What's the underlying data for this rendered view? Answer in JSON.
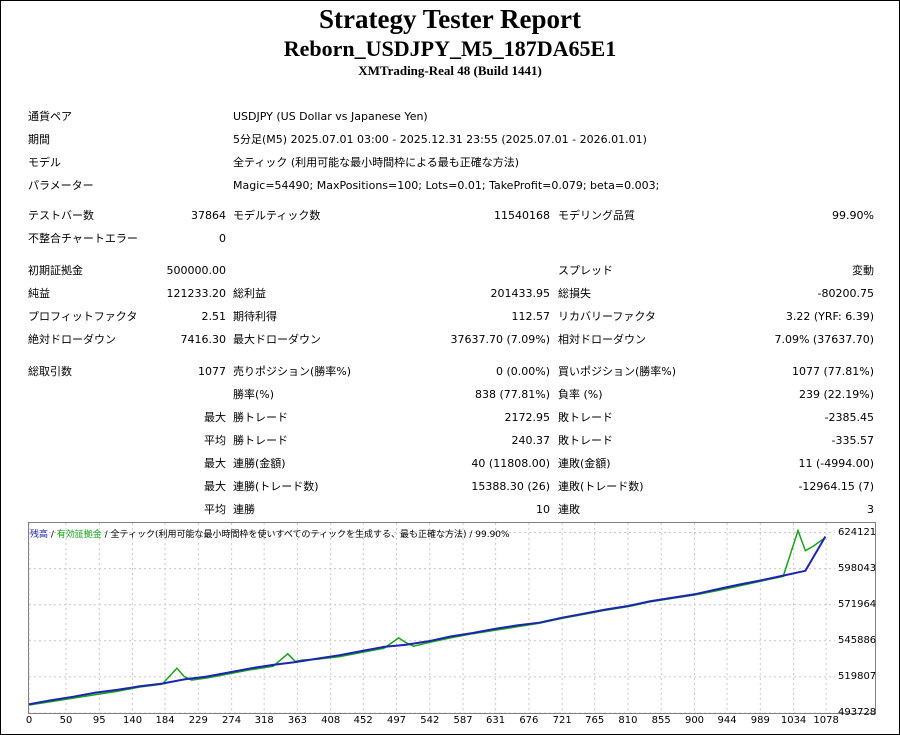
{
  "report": {
    "title": "Strategy Tester Report",
    "ea_name": "Reborn_USDJPY_M5_187DA65E1",
    "server": "XMTrading-Real 48 (Build 1441)"
  },
  "settings": {
    "symbol_label": "通貨ペア",
    "symbol_value": "USDJPY (US Dollar vs Japanese Yen)",
    "period_label": "期間",
    "period_value": "5分足(M5) 2025.07.01 03:00 - 2025.12.31 23:55 (2025.07.01 - 2026.01.01)",
    "model_label": "モデル",
    "model_value": "全ティック (利用可能な最小時間枠による最も正確な方法)",
    "params_label": "パラメーター",
    "params_value": "Magic=54490; MaxPositions=100; Lots=0.01; TakeProfit=0.079; beta=0.003;"
  },
  "stats": {
    "bars_label": "テストバー数",
    "bars_value": "37864",
    "ticks_label": "モデルティック数",
    "ticks_value": "11540168",
    "quality_label": "モデリング品質",
    "quality_value": "99.90%",
    "mismatch_label": "不整合チャートエラー",
    "mismatch_value": "0",
    "deposit_label": "初期証拠金",
    "deposit_value": "500000.00",
    "spread_label": "スプレッド",
    "spread_value": "変動",
    "net_label": "純益",
    "net_value": "121233.20",
    "gross_profit_label": "総利益",
    "gross_profit_value": "201433.95",
    "gross_loss_label": "総損失",
    "gross_loss_value": "-80200.75",
    "pf_label": "プロフィットファクタ",
    "pf_value": "2.51",
    "expected_label": "期待利得",
    "expected_value": "112.57",
    "recovery_label": "リカバリーファクタ",
    "recovery_value": "3.22 (YRF: 6.39)",
    "abs_dd_label": "絶対ドローダウン",
    "abs_dd_value": "7416.30",
    "max_dd_label": "最大ドローダウン",
    "max_dd_value": "37637.70 (7.09%)",
    "rel_dd_label": "相対ドローダウン",
    "rel_dd_value": "7.09% (37637.70)",
    "total_trades_label": "総取引数",
    "total_trades_value": "1077",
    "short_label": "売りポジション(勝率%)",
    "short_value": "0 (0.00%)",
    "long_label": "買いポジション(勝率%)",
    "long_value": "1077 (77.81%)",
    "win_rate_label": "勝率(%)",
    "win_rate_value": "838 (77.81%)",
    "loss_rate_label": "負率 (%)",
    "loss_rate_value": "239 (22.19%)",
    "max_label": "最大",
    "avg_label": "平均",
    "win_trade_label": "勝トレード",
    "lose_trade_label": "敗トレード",
    "largest_win_value": "2172.95",
    "largest_loss_value": "-2385.45",
    "avg_win_value": "240.37",
    "avg_loss_value": "-335.57",
    "cons_win_amt_label": "連勝(金額)",
    "cons_win_amt_value": "40 (11808.00)",
    "cons_loss_amt_label": "連敗(金額)",
    "cons_loss_amt_value": "11 (-4994.00)",
    "cons_win_cnt_label": "連勝(トレード数)",
    "cons_win_cnt_value": "15388.30 (26)",
    "cons_loss_cnt_label": "連敗(トレード数)",
    "cons_loss_cnt_value": "-12964.15 (7)",
    "avg_cons_win_label": "連勝",
    "avg_cons_win_value": "10",
    "avg_cons_loss_label": "連敗",
    "avg_cons_loss_value": "3"
  },
  "chart_legend": {
    "balance": "残高",
    "sep1": " / ",
    "equity": "有効証拠金",
    "rest": " / 全ティック(利用可能な最小時間枠を使いすべてのティックを生成する、最も正確な方法) / 99.90%"
  },
  "chart_data": {
    "type": "line",
    "x_ticks": [
      "0",
      "50",
      "95",
      "140",
      "184",
      "229",
      "274",
      "318",
      "363",
      "408",
      "452",
      "497",
      "542",
      "587",
      "631",
      "676",
      "721",
      "765",
      "810",
      "855",
      "900",
      "944",
      "989",
      "1034",
      "1078"
    ],
    "y_ticks": [
      "624121",
      "598043",
      "571964",
      "545886",
      "519807",
      "493728"
    ],
    "xlim": [
      0,
      1090
    ],
    "ylim": [
      493728,
      631000
    ],
    "series": [
      {
        "color": "#1c24b0",
        "x": [
          0,
          30,
          60,
          90,
          120,
          150,
          180,
          210,
          240,
          270,
          300,
          330,
          360,
          390,
          420,
          450,
          480,
          510,
          540,
          570,
          600,
          630,
          660,
          690,
          720,
          750,
          780,
          810,
          840,
          870,
          900,
          930,
          960,
          990,
          1020,
          1050,
          1077
        ],
        "y": [
          500000,
          503000,
          505500,
          508500,
          510500,
          513000,
          515000,
          518000,
          520000,
          523000,
          526000,
          528500,
          530500,
          533000,
          535500,
          538500,
          541500,
          543000,
          545500,
          549000,
          551500,
          554500,
          557000,
          559000,
          562500,
          565500,
          568500,
          571000,
          574500,
          577000,
          579500,
          583000,
          586500,
          589500,
          593000,
          596500,
          621233
        ]
      },
      {
        "color": "#17a517",
        "x": [
          0,
          30,
          60,
          90,
          120,
          150,
          180,
          200,
          210,
          220,
          240,
          270,
          300,
          330,
          350,
          360,
          370,
          390,
          420,
          450,
          480,
          500,
          510,
          520,
          540,
          570,
          600,
          630,
          660,
          690,
          720,
          750,
          780,
          810,
          840,
          870,
          900,
          930,
          960,
          990,
          1020,
          1040,
          1050,
          1060,
          1077
        ],
        "y": [
          499500,
          502000,
          504500,
          507000,
          509500,
          512500,
          514500,
          526000,
          520000,
          517500,
          519000,
          522000,
          525000,
          527500,
          536500,
          531000,
          532000,
          532500,
          534500,
          537500,
          540500,
          548000,
          544500,
          542000,
          544500,
          548000,
          551000,
          553500,
          556000,
          558500,
          562000,
          565000,
          568000,
          570500,
          574000,
          576500,
          579000,
          582000,
          585500,
          589000,
          592500,
          625500,
          611000,
          614000,
          620500
        ]
      }
    ]
  }
}
